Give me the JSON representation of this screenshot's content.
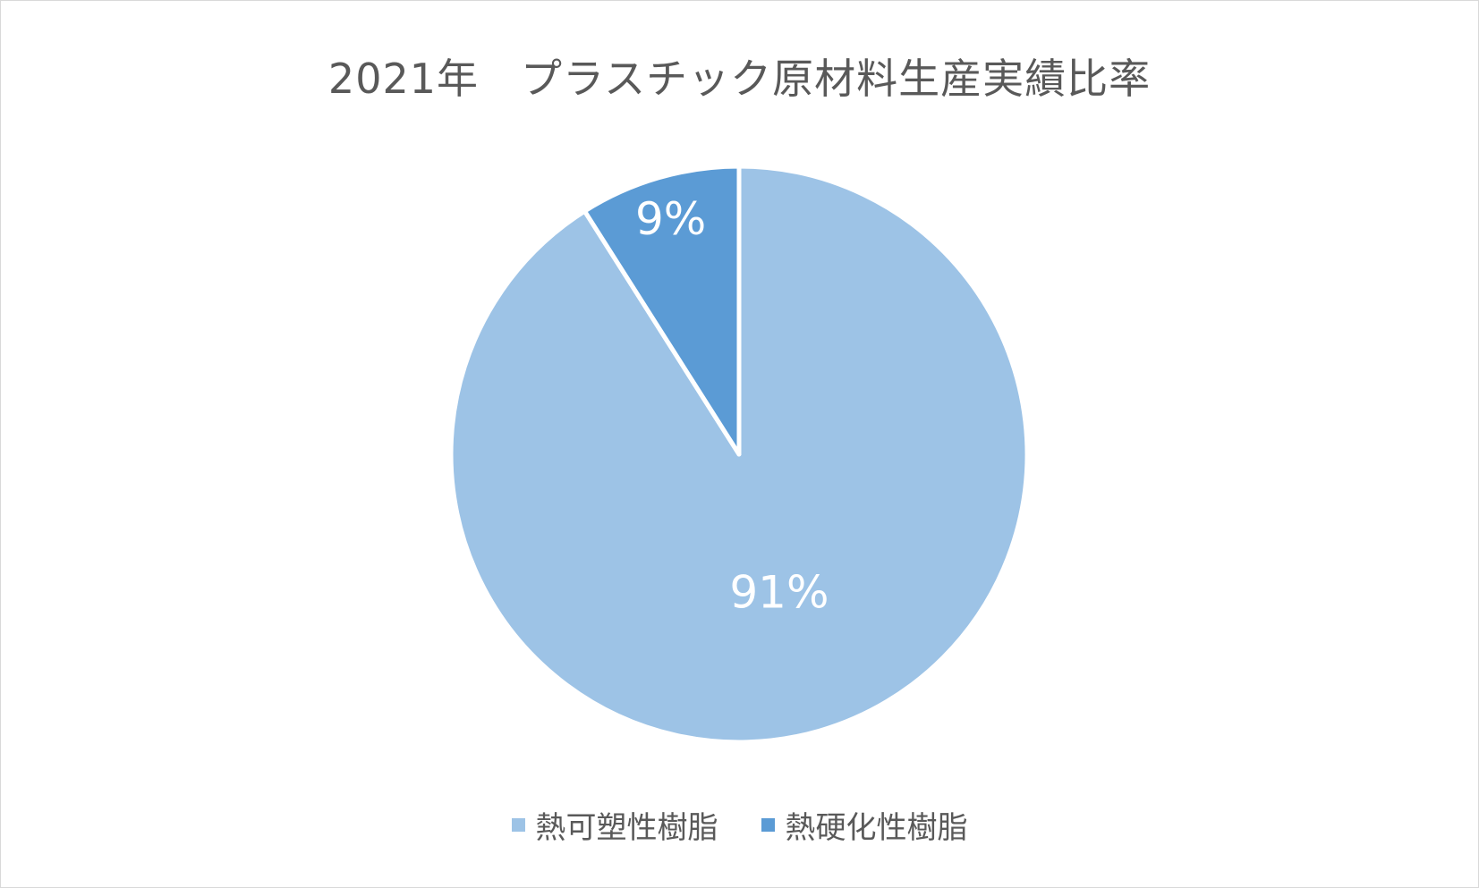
{
  "chart_data": {
    "type": "pie",
    "title": "2021年　プラスチック原材料生産実績比率",
    "categories": [
      "熱可塑性樹脂",
      "熱硬化性樹脂"
    ],
    "values": [
      91,
      9
    ],
    "data_labels": [
      "91%",
      "9%"
    ],
    "colors": [
      "#9dc3e6",
      "#5b9bd5"
    ],
    "legend_position": "bottom"
  }
}
